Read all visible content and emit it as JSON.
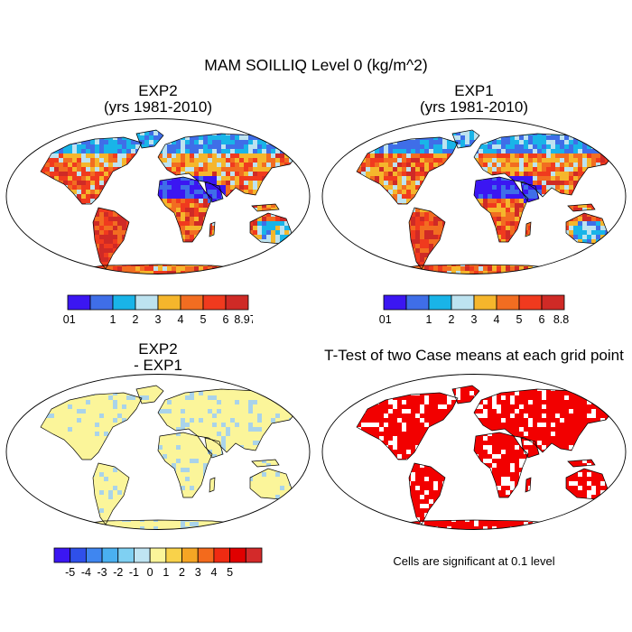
{
  "figure": {
    "title": "MAM SOILLIQ Level 0 (kg/m^2)"
  },
  "panels": [
    {
      "id": "exp2",
      "title_lines": [
        "EXP2",
        "(yrs 1981-2010)"
      ],
      "fill": "field",
      "colorbar": {
        "colors": [
          "#3b16f2",
          "#3f6ee8",
          "#19b4e8",
          "#bde3f0",
          "#f5b62c",
          "#f26d21",
          "#f03a1e",
          "#cf2a26"
        ],
        "labels": [
          ".01",
          "1",
          "2",
          "3",
          "4",
          "5",
          "6",
          "8.974"
        ]
      }
    },
    {
      "id": "exp1",
      "title_lines": [
        "EXP1",
        "(yrs 1981-2010)"
      ],
      "fill": "field",
      "colorbar": {
        "colors": [
          "#3b16f2",
          "#3f6ee8",
          "#19b4e8",
          "#bde3f0",
          "#f5b62c",
          "#f26d21",
          "#f03a1e",
          "#cf2a26"
        ],
        "labels": [
          ".01",
          "1",
          "2",
          "3",
          "4",
          "5",
          "6",
          "8.84"
        ]
      }
    },
    {
      "id": "diff",
      "title_lines": [
        "EXP2",
        "- EXP1"
      ],
      "fill": "diff",
      "colorbar": {
        "colors": [
          "#3b16f2",
          "#2f50ea",
          "#3f86f0",
          "#4ab0f0",
          "#7fd0f2",
          "#bfe4f2",
          "#fbf59a",
          "#f9d24a",
          "#f5a524",
          "#f36a1c",
          "#ef2b12",
          "#e00000",
          "#d32a2a"
        ],
        "labels": [
          "-5",
          "-4",
          "-3",
          "-2",
          "-1",
          "0",
          "1",
          "2",
          "3",
          "4",
          "5"
        ]
      }
    },
    {
      "id": "ttest",
      "title_lines": [
        "T-Test of two Case means at each grid point"
      ],
      "fill": "sig",
      "note": "Cells are significant at 0.1 level"
    }
  ],
  "colors": {
    "sig_red": "#f20000",
    "diff_yellow": "#fbf59a",
    "diff_lightblue": "#a9d3ea"
  }
}
